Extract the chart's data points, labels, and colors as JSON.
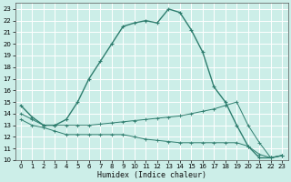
{
  "xlabel": "Humidex (Indice chaleur)",
  "bg_color": "#cceee8",
  "grid_color": "#ffffff",
  "line_color": "#2e7d6e",
  "xlim": [
    -0.5,
    23.5
  ],
  "ylim": [
    10,
    23.5
  ],
  "xticks": [
    0,
    1,
    2,
    3,
    4,
    5,
    6,
    7,
    8,
    9,
    10,
    11,
    12,
    13,
    14,
    15,
    16,
    17,
    18,
    19,
    20,
    21,
    22,
    23
  ],
  "yticks": [
    10,
    11,
    12,
    13,
    14,
    15,
    16,
    17,
    18,
    19,
    20,
    21,
    22,
    23
  ],
  "line1_x": [
    0,
    1,
    2,
    3,
    4,
    5,
    6,
    7,
    8,
    9,
    10,
    11,
    12,
    13,
    14,
    15,
    16,
    17,
    18,
    19,
    20,
    21,
    22,
    23
  ],
  "line1_y": [
    14.7,
    13.7,
    13.0,
    13.0,
    13.5,
    15.0,
    17.0,
    18.5,
    20.0,
    21.5,
    21.8,
    22.0,
    21.8,
    23.0,
    22.7,
    21.2,
    19.3,
    16.3,
    15.0,
    13.0,
    11.2,
    10.2,
    10.2,
    10.4
  ],
  "line2_x": [
    0,
    1,
    2,
    3,
    4,
    5,
    6,
    7,
    8,
    9,
    10,
    11,
    12,
    13,
    14,
    15,
    16,
    17,
    18,
    19,
    20,
    21,
    22,
    23
  ],
  "line2_y": [
    14.0,
    13.5,
    13.0,
    13.0,
    13.0,
    13.0,
    13.0,
    13.1,
    13.2,
    13.3,
    13.4,
    13.5,
    13.6,
    13.7,
    13.8,
    14.0,
    14.2,
    14.4,
    14.7,
    15.0,
    13.0,
    11.5,
    10.2,
    10.4
  ],
  "line3_x": [
    0,
    1,
    2,
    3,
    4,
    5,
    6,
    7,
    8,
    9,
    10,
    11,
    12,
    13,
    14,
    15,
    16,
    17,
    18,
    19,
    20,
    21,
    22,
    23
  ],
  "line3_y": [
    13.5,
    13.0,
    12.8,
    12.5,
    12.2,
    12.2,
    12.2,
    12.2,
    12.2,
    12.2,
    12.0,
    11.8,
    11.7,
    11.6,
    11.5,
    11.5,
    11.5,
    11.5,
    11.5,
    11.5,
    11.2,
    10.5,
    10.2,
    10.4
  ]
}
